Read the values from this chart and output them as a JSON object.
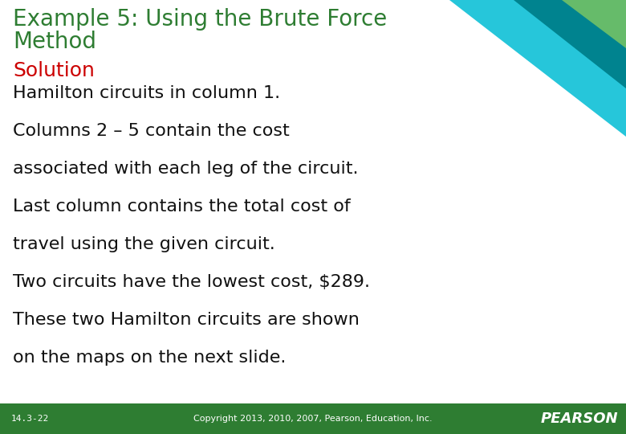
{
  "title_line1": "Example 5: Using the Brute Force",
  "title_line2": "Method",
  "title_color": "#2E7D32",
  "solution_label": "Solution",
  "solution_color": "#CC0000",
  "body_lines": [
    "Hamilton circuits in column 1.",
    "Columns 2 – 5 contain the cost",
    "associated with each leg of the circuit.",
    "Last column contains the total cost of",
    "travel using the given circuit.",
    "Two circuits have the lowest cost, $289.",
    "These two Hamilton circuits are shown",
    "on the maps on the next slide."
  ],
  "body_color": "#111111",
  "background_color": "#FFFFFF",
  "footer_bg_color": "#2E7D32",
  "footer_text": "Copyright 2013, 2010, 2007, Pearson, Education, Inc.",
  "footer_label": "14.3-22",
  "footer_pearson": "PEARSON",
  "footer_text_color": "#FFFFFF",
  "title_fontsize": 20,
  "solution_fontsize": 18,
  "body_fontsize": 16,
  "footer_fontsize": 8
}
